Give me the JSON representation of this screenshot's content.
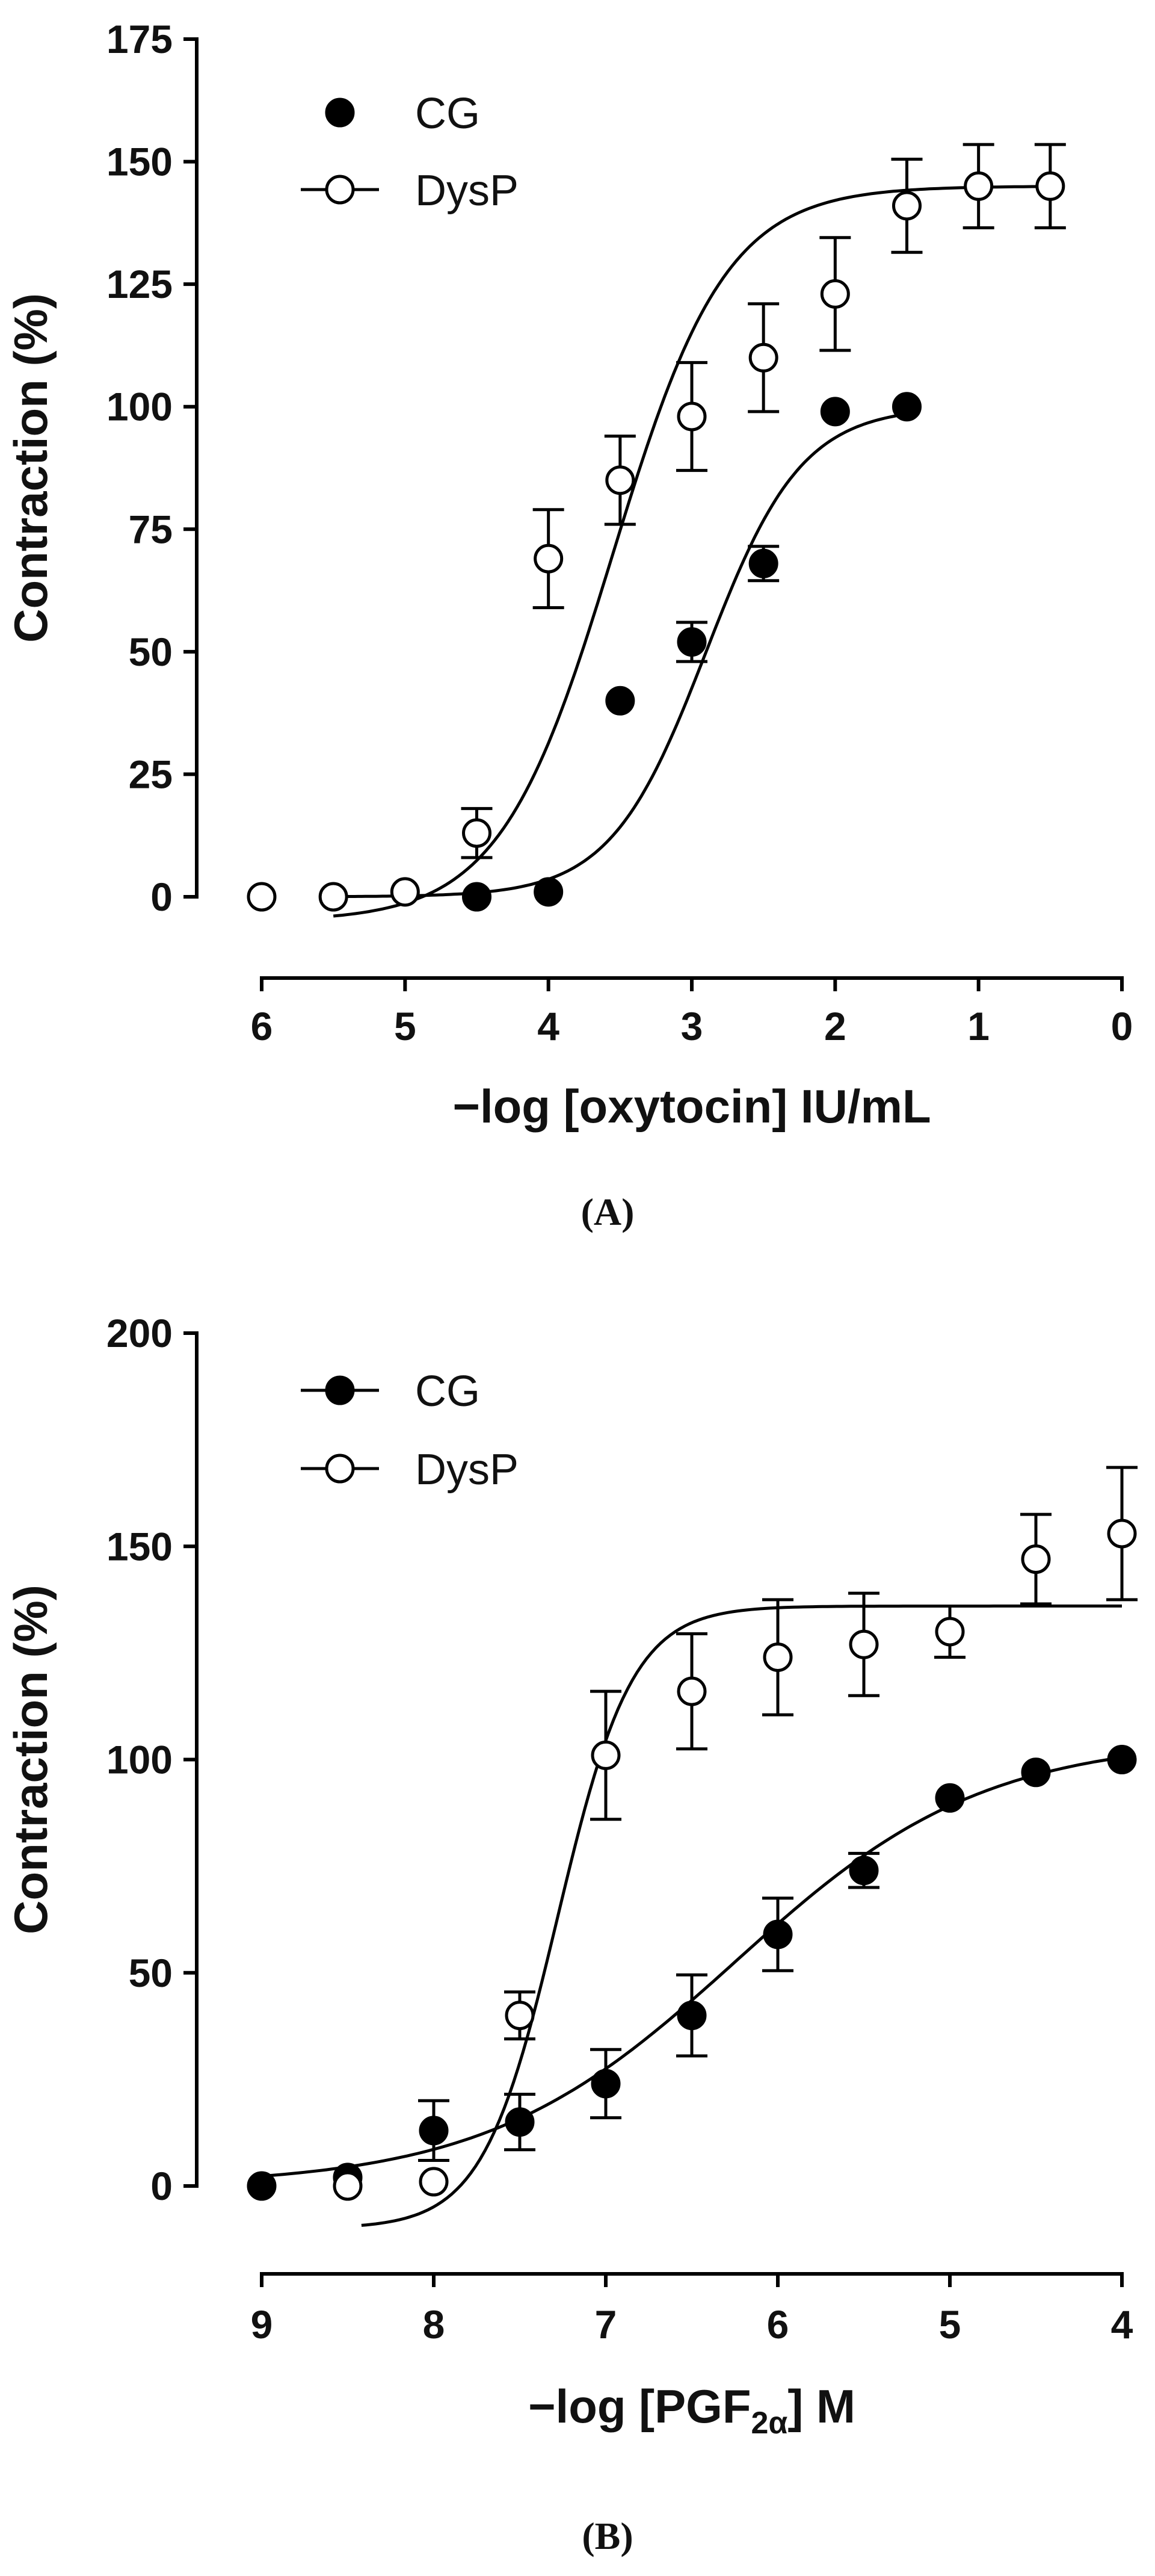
{
  "chart_data": [
    {
      "panel_label": "(A)",
      "type": "scatter",
      "xlabel": "−log [oxytocin] IU/mL",
      "ylabel": "Contraction (%)",
      "xlim": [
        6,
        0
      ],
      "ylim": [
        0,
        175
      ],
      "x_ticks": [
        "6",
        "5",
        "4",
        "3",
        "2",
        "1",
        "0"
      ],
      "y_ticks": [
        "0",
        "25",
        "50",
        "75",
        "100",
        "125",
        "150",
        "175"
      ],
      "legend_position": "top-left",
      "series": [
        {
          "name": "CG",
          "marker": "filled-circle",
          "fit_curve": {
            "bottom": 0,
            "top": 100,
            "ec50_x": 2.9,
            "hill": 1.3,
            "x_from": 5.5,
            "x_to": 1.55
          },
          "points": [
            {
              "x": 4.5,
              "y": 0,
              "err": 0
            },
            {
              "x": 4.0,
              "y": 1,
              "err": 0
            },
            {
              "x": 3.5,
              "y": 40,
              "err": 0
            },
            {
              "x": 3.0,
              "y": 52,
              "err": 4
            },
            {
              "x": 2.5,
              "y": 68,
              "err": 3.5
            },
            {
              "x": 2.0,
              "y": 99,
              "err": 0
            },
            {
              "x": 1.5,
              "y": 100,
              "err": 0
            }
          ]
        },
        {
          "name": "DysP",
          "marker": "open-circle",
          "fit_curve": {
            "bottom": -5,
            "top": 145,
            "ec50_x": 3.55,
            "hill": 1.1,
            "x_from": 5.5,
            "x_to": 0.5
          },
          "points": [
            {
              "x": 6.0,
              "y": 0,
              "err": 0
            },
            {
              "x": 5.5,
              "y": 0,
              "err": 0
            },
            {
              "x": 5.0,
              "y": 1,
              "err": 0
            },
            {
              "x": 4.5,
              "y": 13,
              "err": 5
            },
            {
              "x": 4.0,
              "y": 69,
              "err": 10
            },
            {
              "x": 3.5,
              "y": 85,
              "err": 9
            },
            {
              "x": 3.0,
              "y": 98,
              "err": 11
            },
            {
              "x": 2.5,
              "y": 110,
              "err": 11
            },
            {
              "x": 2.0,
              "y": 123,
              "err": 11.5
            },
            {
              "x": 1.5,
              "y": 141,
              "err": 9.5
            },
            {
              "x": 1.0,
              "y": 145,
              "err": 8.5
            },
            {
              "x": 0.5,
              "y": 145,
              "err": 8.5
            }
          ]
        }
      ]
    },
    {
      "panel_label": "(B)",
      "type": "scatter",
      "xlabel": "−log [PGF₂α] M",
      "xlabel_parts": {
        "pre": "−log [PGF",
        "sub": "2α",
        "post": "] M"
      },
      "ylabel": "Contraction (%)",
      "xlim": [
        9,
        4
      ],
      "ylim": [
        0,
        200
      ],
      "x_ticks": [
        "9",
        "8",
        "7",
        "6",
        "5",
        "4"
      ],
      "y_ticks": [
        "0",
        "50",
        "100",
        "150",
        "200"
      ],
      "legend_position": "top-left",
      "series": [
        {
          "name": "CG",
          "marker": "filled-circle",
          "fit_curve": {
            "bottom": 0,
            "top": 105,
            "ec50_x": 6.25,
            "hill": 0.6,
            "x_from": 9.0,
            "x_to": 4.0
          },
          "points": [
            {
              "x": 9.0,
              "y": 0,
              "err": 0
            },
            {
              "x": 8.5,
              "y": 2,
              "err": 0
            },
            {
              "x": 8.0,
              "y": 13,
              "err": 7
            },
            {
              "x": 7.5,
              "y": 15,
              "err": 6.5
            },
            {
              "x": 7.0,
              "y": 24,
              "err": 8
            },
            {
              "x": 6.5,
              "y": 40,
              "err": 9.5
            },
            {
              "x": 6.0,
              "y": 59,
              "err": 8.5
            },
            {
              "x": 5.5,
              "y": 74,
              "err": 4
            },
            {
              "x": 5.0,
              "y": 91,
              "err": 0
            },
            {
              "x": 4.5,
              "y": 97,
              "err": 0
            },
            {
              "x": 4.0,
              "y": 100,
              "err": 0
            }
          ]
        },
        {
          "name": "DysP",
          "marker": "open-circle",
          "fit_curve": {
            "bottom": -10,
            "top": 136,
            "ec50_x": 7.28,
            "hill": 2.0,
            "x_from": 8.42,
            "x_to": 4.0
          },
          "points": [
            {
              "x": 8.5,
              "y": 0,
              "err": 0
            },
            {
              "x": 8.0,
              "y": 1,
              "err": 0
            },
            {
              "x": 7.5,
              "y": 40,
              "err": 5.5
            },
            {
              "x": 7.0,
              "y": 101,
              "err": 15
            },
            {
              "x": 6.5,
              "y": 116,
              "err": 13.5
            },
            {
              "x": 6.0,
              "y": 124,
              "err": 13.5
            },
            {
              "x": 5.5,
              "y": 127,
              "err": 12
            },
            {
              "x": 5.0,
              "y": 130,
              "err": 6
            },
            {
              "x": 4.5,
              "y": 147,
              "err": 10.5
            },
            {
              "x": 4.0,
              "y": 153,
              "err": 15.5
            }
          ]
        }
      ]
    }
  ]
}
